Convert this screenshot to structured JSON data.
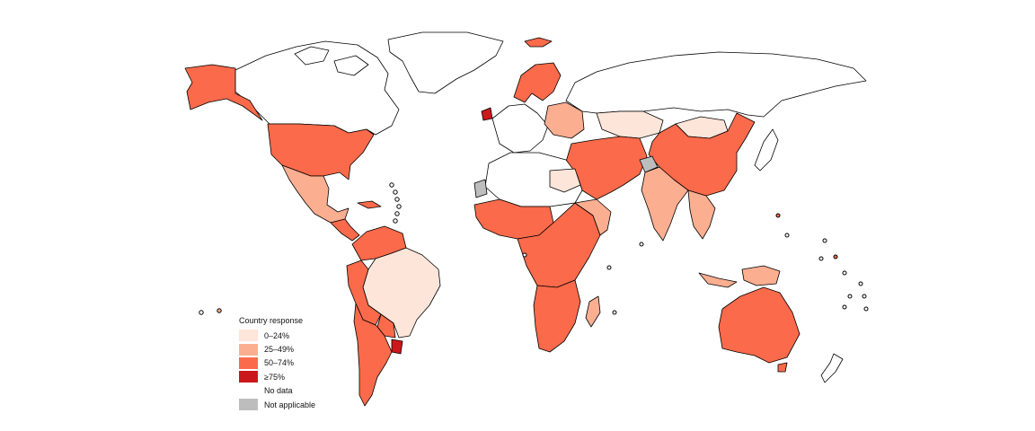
{
  "legend": {
    "title": "Country response",
    "items": [
      {
        "label": "0–24%",
        "color": "#fee5d9"
      },
      {
        "label": "25–49%",
        "color": "#fcae91"
      },
      {
        "label": "50–74%",
        "color": "#fb6a4a"
      },
      {
        "label": "≥75%",
        "color": "#cb181d"
      },
      {
        "label": "No data",
        "color": "#ffffff"
      },
      {
        "label": "Not applicable",
        "color": "#bdbdbd"
      }
    ]
  },
  "region_colors": {
    "no_data": "#ffffff",
    "low": "#fee5d9",
    "mid_low": "#fcae91",
    "mid_high": "#fb6a4a",
    "high": "#cb181d",
    "not_applicable": "#bdbdbd"
  }
}
